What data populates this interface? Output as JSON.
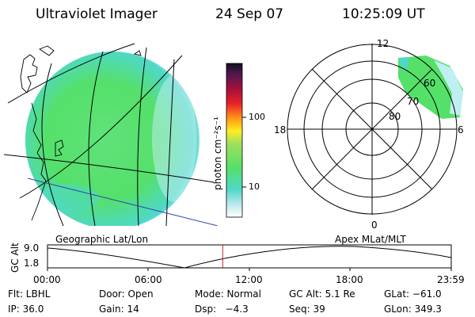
{
  "header": {
    "instrument": "Ultraviolet Imager",
    "date": "24 Sep 07",
    "time": "10:25:09 UT"
  },
  "colorbar": {
    "unit_label": "photon cm⁻²s⁻¹",
    "ticks": [
      "100",
      "10"
    ]
  },
  "polar": {
    "mlt_labels": {
      "top": "12",
      "right": "6",
      "bottom": "0",
      "left": "18"
    },
    "lat_labels": [
      "60",
      "70",
      "80"
    ]
  },
  "panel_labels": {
    "left": "Geographic Lat/Lon",
    "right": "Apex MLat/MLT"
  },
  "timeline": {
    "ylabel": "GC Alt",
    "yticks": [
      "9.0",
      "1.8"
    ],
    "xticks": [
      "00:00",
      "06:00",
      "12:00",
      "18:00",
      "23:59"
    ],
    "current_time_fraction": 0.434
  },
  "footer": {
    "filter": "Flt: LBHL",
    "door": "Door: Open",
    "mode": "Mode: Normal",
    "gc_alt": "GC Alt: 5.1 Re",
    "glat": "GLat: −61.0",
    "ip": "IP: 36.0",
    "gain": "Gain: 14",
    "dsp": "Dsp:   −4.3",
    "seq": "Seq: 39",
    "glon": "GLon: 349.3"
  },
  "colors": {
    "aurora_green": "#55e06a",
    "aurora_cyan": "#4fd8c8",
    "marker_red": "#cc2222"
  }
}
